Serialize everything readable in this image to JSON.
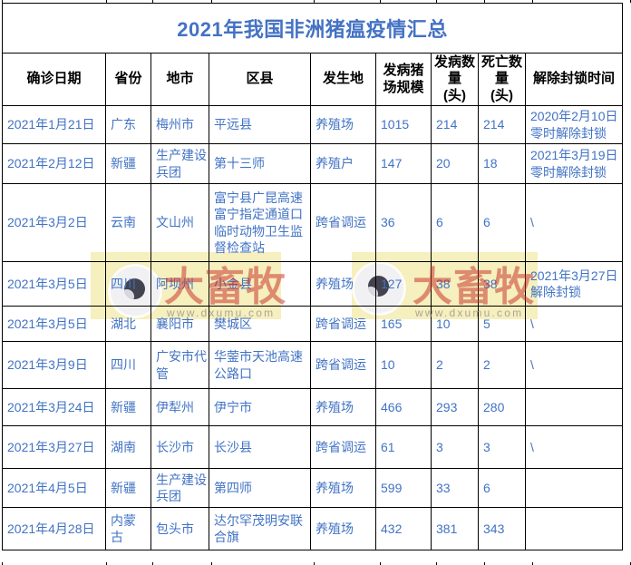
{
  "title": "2021年我国非洲猪瘟疫情汇总",
  "watermark": {
    "logo_icon": "eye-icon",
    "brand": "大畜牧",
    "url": "www.dxumu.com"
  },
  "colors": {
    "title_blue": "#4472c4",
    "data_blue": "#4173c4",
    "grid_line": "#000000",
    "watermark_red": "#c63026",
    "watermark_yellow": "#f2e47a",
    "watermark_url_gray": "#9e988c"
  },
  "table": {
    "headers": [
      "确诊日期",
      "省份",
      "地市",
      "区县",
      "发生地",
      "发病猪\n场规模",
      "发病数\n量\n(头)",
      "死亡数\n量\n(头)",
      "解除封锁时间"
    ],
    "rows": [
      [
        "2021年1月21日",
        "广东",
        "梅州市",
        "平远县",
        "养殖场",
        "1015",
        "214",
        "214",
        "2020年2月10日\n零时解除封锁"
      ],
      [
        "2021年2月12日",
        "新疆",
        "生产建设\n兵团",
        "第十三师",
        "养殖户",
        "147",
        "20",
        "18",
        "2021年3月19日\n零时解除封锁"
      ],
      [
        "2021年3月2日",
        "云南",
        "文山州",
        "富宁县广昆高速\n富宁指定通道口\n临时动物卫生监\n督检查站",
        "跨省调运",
        "36",
        "6",
        "6",
        "\\"
      ],
      [
        "2021年3月5日",
        "四川",
        "阿坝州",
        "小金县",
        "养殖场",
        "127",
        "38",
        "38",
        "2021年3月27日\n解除封锁"
      ],
      [
        "2021年3月5日",
        "湖北",
        "襄阳市",
        "樊城区",
        "跨省调运",
        "165",
        "10",
        "5",
        "\\"
      ],
      [
        "2021年3月9日",
        "四川",
        "广安市代\n管",
        "华蓥市天池高速\n公路口",
        "跨省调运",
        "10",
        "2",
        "2",
        "\\"
      ],
      [
        "2021年3月24日",
        "新疆",
        "伊犁州",
        "伊宁市",
        "养殖场",
        "466",
        "293",
        "280",
        ""
      ],
      [
        "2021年3月27日",
        "湖南",
        "长沙市",
        "长沙县",
        "跨省调运",
        "61",
        "3",
        "3",
        "\\"
      ],
      [
        "2021年4月5日",
        "新疆",
        "生产建设\n兵团",
        "第四师",
        "养殖场",
        "599",
        "33",
        "6",
        ""
      ],
      [
        "2021年4月28日",
        "内蒙\n古",
        "包头市",
        "达尔罕茂明安联\n合旗",
        "养殖场",
        "432",
        "381",
        "343",
        ""
      ]
    ]
  }
}
